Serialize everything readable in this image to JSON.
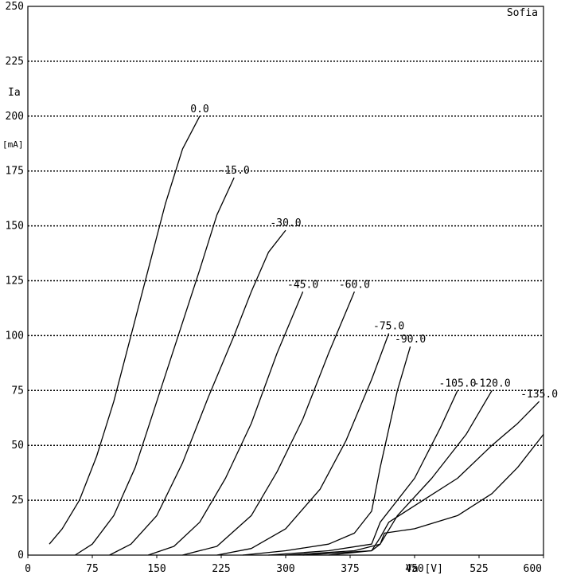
{
  "chart_data": {
    "type": "line",
    "brand": "Sofia",
    "ylabel": "Ia",
    "yunit": "[mA]",
    "xlabel": "Va [V]",
    "xlim": [
      0,
      600
    ],
    "ylim": [
      0,
      250
    ],
    "x_ticks": [
      0,
      75,
      150,
      225,
      300,
      375,
      450,
      525,
      600
    ],
    "y_ticks": [
      0,
      25,
      50,
      75,
      100,
      125,
      150,
      175,
      200,
      225,
      250
    ],
    "grid": "horizontal dotted",
    "series": [
      {
        "name": "0.0",
        "x": [
          25,
          40,
          60,
          80,
          100,
          120,
          140,
          160,
          180,
          200
        ],
        "y": [
          5,
          12,
          25,
          45,
          70,
          100,
          130,
          160,
          185,
          200
        ]
      },
      {
        "name": "-15.0",
        "x": [
          55,
          75,
          100,
          125,
          150,
          175,
          200,
          220,
          240
        ],
        "y": [
          0,
          5,
          18,
          40,
          70,
          100,
          130,
          155,
          172
        ]
      },
      {
        "name": "-30.0",
        "x": [
          95,
          120,
          150,
          180,
          210,
          240,
          260,
          280,
          300
        ],
        "y": [
          0,
          5,
          18,
          42,
          72,
          100,
          120,
          138,
          148
        ]
      },
      {
        "name": "-45.0",
        "x": [
          140,
          170,
          200,
          230,
          260,
          290,
          320
        ],
        "y": [
          0,
          4,
          15,
          35,
          60,
          92,
          120
        ]
      },
      {
        "name": "-60.0",
        "x": [
          180,
          220,
          260,
          290,
          320,
          350,
          380
        ],
        "y": [
          0,
          4,
          18,
          38,
          62,
          92,
          120
        ]
      },
      {
        "name": "-75.0",
        "x": [
          220,
          260,
          300,
          340,
          370,
          400,
          420
        ],
        "y": [
          0,
          3,
          12,
          30,
          52,
          80,
          101
        ]
      },
      {
        "name": "-90.0",
        "x": [
          250,
          300,
          350,
          380,
          400,
          410,
          430,
          445
        ],
        "y": [
          0,
          2,
          5,
          10,
          20,
          40,
          75,
          95
        ]
      },
      {
        "name": "-105.0",
        "x": [
          280,
          350,
          400,
          410,
          450,
          480,
          500
        ],
        "y": [
          0,
          2,
          5,
          15,
          35,
          58,
          75
        ]
      },
      {
        "name": "-120.0",
        "x": [
          300,
          380,
          410,
          430,
          470,
          510,
          540
        ],
        "y": [
          0,
          2,
          5,
          18,
          35,
          55,
          75
        ]
      },
      {
        "name": "-135.0",
        "x": [
          320,
          400,
          410,
          420,
          460,
          500,
          540,
          570,
          595
        ],
        "y": [
          0,
          2,
          8,
          15,
          25,
          35,
          50,
          60,
          70
        ]
      },
      {
        "name": "",
        "x": [
          350,
          400,
          410,
          415,
          450,
          500,
          540,
          570,
          600
        ],
        "y": [
          0,
          2,
          5,
          10,
          12,
          18,
          28,
          40,
          55
        ]
      }
    ]
  }
}
